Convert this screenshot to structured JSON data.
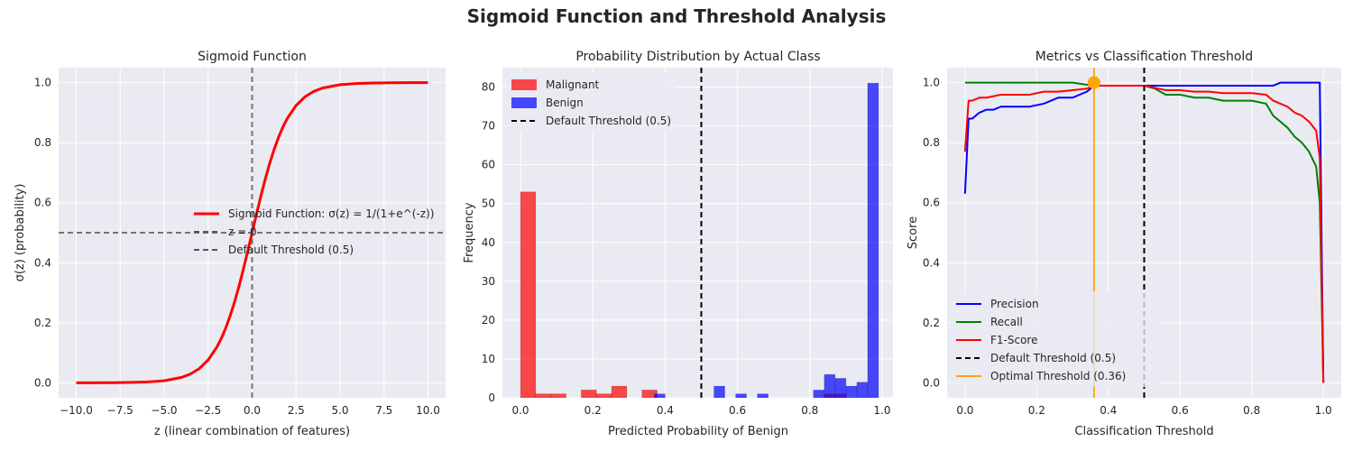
{
  "figure": {
    "title": "Sigmoid Function and Threshold Analysis"
  },
  "chart_data": [
    {
      "id": "sigmoid",
      "type": "line",
      "title": "Sigmoid Function",
      "xlabel": "z (linear combination of features)",
      "ylabel": "σ(z) (probability)",
      "xlim": [
        -11,
        11
      ],
      "ylim": [
        -0.05,
        1.05
      ],
      "xticks": [
        -10.0,
        -7.5,
        -5.0,
        -2.5,
        0.0,
        2.5,
        5.0,
        7.5,
        10.0
      ],
      "xtick_labels": [
        "−10.0",
        "−7.5",
        "−5.0",
        "−2.5",
        "0.0",
        "2.5",
        "5.0",
        "7.5",
        "10.0"
      ],
      "yticks": [
        0.0,
        0.2,
        0.4,
        0.6,
        0.8,
        1.0
      ],
      "ytick_labels": [
        "0.0",
        "0.2",
        "0.4",
        "0.6",
        "0.8",
        "1.0"
      ],
      "grid": true,
      "legend": "center-right",
      "series": [
        {
          "name": "Sigmoid Function: σ(z) = 1/(1+e^(-z))",
          "color": "#ff0000",
          "x": [
            -10,
            -9,
            -8,
            -7,
            -6,
            -5,
            -4,
            -3.5,
            -3,
            -2.5,
            -2,
            -1.75,
            -1.5,
            -1.25,
            -1,
            -0.75,
            -0.5,
            -0.25,
            0,
            0.25,
            0.5,
            0.75,
            1,
            1.25,
            1.5,
            1.75,
            2,
            2.5,
            3,
            3.5,
            4,
            5,
            6,
            7,
            8,
            9,
            10
          ],
          "y": [
            4.54e-05,
            0.000123,
            0.000335,
            0.000911,
            0.00247,
            0.00669,
            0.018,
            0.0293,
            0.0474,
            0.0759,
            0.1192,
            0.148,
            0.1824,
            0.2227,
            0.2689,
            0.3208,
            0.3775,
            0.4378,
            0.5,
            0.5622,
            0.6225,
            0.6792,
            0.7311,
            0.7773,
            0.8176,
            0.852,
            0.8808,
            0.9241,
            0.9526,
            0.9707,
            0.982,
            0.9933,
            0.9975,
            0.9991,
            0.9997,
            0.9999,
            0.99995
          ]
        }
      ],
      "reference_lines": [
        {
          "name": "z = 0",
          "orientation": "vertical",
          "value": 0,
          "color": "#555555"
        },
        {
          "name": "Default Threshold (0.5)",
          "orientation": "horizontal",
          "value": 0.5,
          "color": "#555555"
        }
      ]
    },
    {
      "id": "histogram",
      "type": "bar",
      "title": "Probability Distribution by Actual Class",
      "xlabel": "Predicted Probability of Benign",
      "ylabel": "Frequency",
      "xlim": [
        -0.05,
        1.03
      ],
      "ylim": [
        0,
        85
      ],
      "xticks": [
        0.0,
        0.2,
        0.4,
        0.6,
        0.8,
        1.0
      ],
      "xtick_labels": [
        "0.0",
        "0.2",
        "0.4",
        "0.6",
        "0.8",
        "1.0"
      ],
      "yticks": [
        0,
        10,
        20,
        30,
        40,
        50,
        60,
        70,
        80
      ],
      "ytick_labels": [
        "0",
        "10",
        "20",
        "30",
        "40",
        "50",
        "60",
        "70",
        "80"
      ],
      "grid": true,
      "legend": "top-left",
      "series": [
        {
          "name": "Malignant",
          "color": "#ff0000",
          "bin_start": [
            0.0,
            0.042,
            0.084,
            0.168,
            0.21,
            0.252,
            0.336,
            0.84,
            0.87
          ],
          "bin_end": [
            0.042,
            0.084,
            0.126,
            0.21,
            0.252,
            0.294,
            0.378,
            0.87,
            0.9
          ],
          "values": [
            53,
            1,
            1,
            2,
            1,
            3,
            2,
            1,
            1
          ]
        },
        {
          "name": "Benign",
          "color": "#0000ff",
          "bin_start": [
            0.37,
            0.535,
            0.595,
            0.655,
            0.81,
            0.84,
            0.87,
            0.9,
            0.93,
            0.96
          ],
          "bin_end": [
            0.4,
            0.565,
            0.625,
            0.685,
            0.84,
            0.87,
            0.9,
            0.93,
            0.96,
            0.99
          ],
          "values": [
            1,
            3,
            1,
            1,
            2,
            6,
            5,
            3,
            4,
            81
          ]
        }
      ],
      "reference_lines": [
        {
          "name": "Default Threshold (0.5)",
          "orientation": "vertical",
          "value": 0.5,
          "color": "#000000"
        }
      ]
    },
    {
      "id": "metrics",
      "type": "line",
      "title": "Metrics vs Classification Threshold",
      "xlabel": "Classification Threshold",
      "ylabel": "Score",
      "xlim": [
        -0.05,
        1.05
      ],
      "ylim": [
        -0.05,
        1.05
      ],
      "xticks": [
        0.0,
        0.2,
        0.4,
        0.6,
        0.8,
        1.0
      ],
      "xtick_labels": [
        "0.0",
        "0.2",
        "0.4",
        "0.6",
        "0.8",
        "1.0"
      ],
      "yticks": [
        0.0,
        0.2,
        0.4,
        0.6,
        0.8,
        1.0
      ],
      "ytick_labels": [
        "0.0",
        "0.2",
        "0.4",
        "0.6",
        "0.8",
        "1.0"
      ],
      "grid": true,
      "legend": "bottom-left",
      "series": [
        {
          "name": "Precision",
          "color": "#0000ff",
          "x": [
            0.0,
            0.01,
            0.02,
            0.04,
            0.06,
            0.08,
            0.1,
            0.14,
            0.18,
            0.22,
            0.26,
            0.3,
            0.34,
            0.36,
            0.5,
            0.6,
            0.7,
            0.8,
            0.86,
            0.88,
            0.99,
            1.0
          ],
          "y": [
            0.63,
            0.88,
            0.88,
            0.9,
            0.91,
            0.91,
            0.92,
            0.92,
            0.92,
            0.93,
            0.95,
            0.95,
            0.97,
            0.99,
            0.99,
            0.99,
            0.99,
            0.99,
            0.99,
            1.0,
            1.0,
            0.0
          ]
        },
        {
          "name": "Recall",
          "color": "#008000",
          "x": [
            0.0,
            0.3,
            0.36,
            0.5,
            0.53,
            0.56,
            0.6,
            0.64,
            0.68,
            0.72,
            0.76,
            0.8,
            0.84,
            0.86,
            0.88,
            0.9,
            0.92,
            0.94,
            0.96,
            0.98,
            0.99,
            1.0
          ],
          "y": [
            1.0,
            1.0,
            0.99,
            0.99,
            0.98,
            0.96,
            0.96,
            0.95,
            0.95,
            0.94,
            0.94,
            0.94,
            0.93,
            0.89,
            0.87,
            0.85,
            0.82,
            0.8,
            0.77,
            0.72,
            0.6,
            0.0
          ]
        },
        {
          "name": "F1-Score",
          "color": "#ff0000",
          "x": [
            0.0,
            0.01,
            0.02,
            0.04,
            0.06,
            0.08,
            0.1,
            0.14,
            0.18,
            0.22,
            0.26,
            0.3,
            0.34,
            0.36,
            0.5,
            0.52,
            0.56,
            0.6,
            0.64,
            0.68,
            0.72,
            0.76,
            0.8,
            0.84,
            0.86,
            0.88,
            0.9,
            0.92,
            0.94,
            0.96,
            0.98,
            0.99,
            1.0
          ],
          "y": [
            0.77,
            0.94,
            0.94,
            0.95,
            0.95,
            0.955,
            0.96,
            0.96,
            0.96,
            0.97,
            0.97,
            0.975,
            0.98,
            0.99,
            0.99,
            0.985,
            0.975,
            0.975,
            0.97,
            0.97,
            0.965,
            0.965,
            0.965,
            0.96,
            0.94,
            0.93,
            0.92,
            0.9,
            0.89,
            0.87,
            0.84,
            0.75,
            0.0
          ]
        }
      ],
      "reference_lines": [
        {
          "name": "Default Threshold (0.5)",
          "orientation": "vertical",
          "value": 0.5,
          "color": "#000000"
        },
        {
          "name": "Optimal Threshold (0.36)",
          "orientation": "vertical",
          "value": 0.36,
          "color": "#ffa500"
        }
      ],
      "annotations": [
        {
          "type": "marker",
          "x": 0.36,
          "y": 1.0,
          "color": "#ffa500"
        }
      ]
    }
  ]
}
